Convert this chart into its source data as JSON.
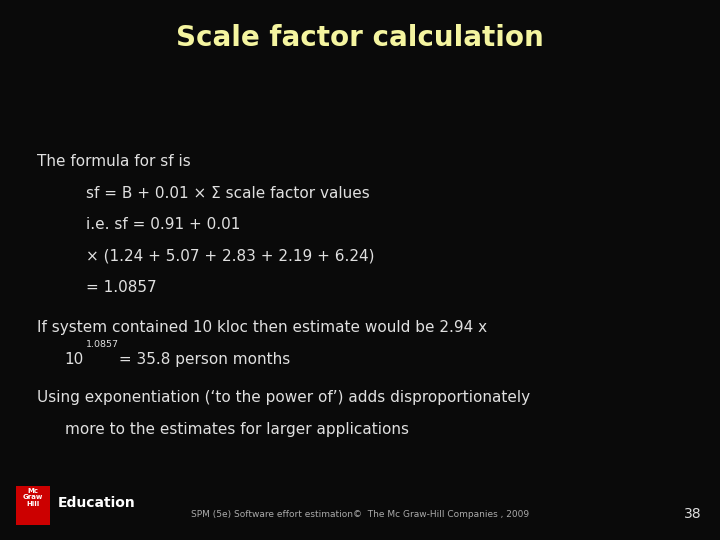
{
  "title": "Scale factor calculation",
  "title_color": "#f5f5a0",
  "title_fontsize": 20,
  "bg_color": "#0a0a0a",
  "text_color": "#e0e0e0",
  "body_fontsize": 11,
  "footer_text": "SPM (5e) Software effort estimation©  The Mc Graw-Hill Companies , 2009",
  "footer_color": "#aaaaaa",
  "page_number": "38",
  "logo_bg": "#cc0000"
}
